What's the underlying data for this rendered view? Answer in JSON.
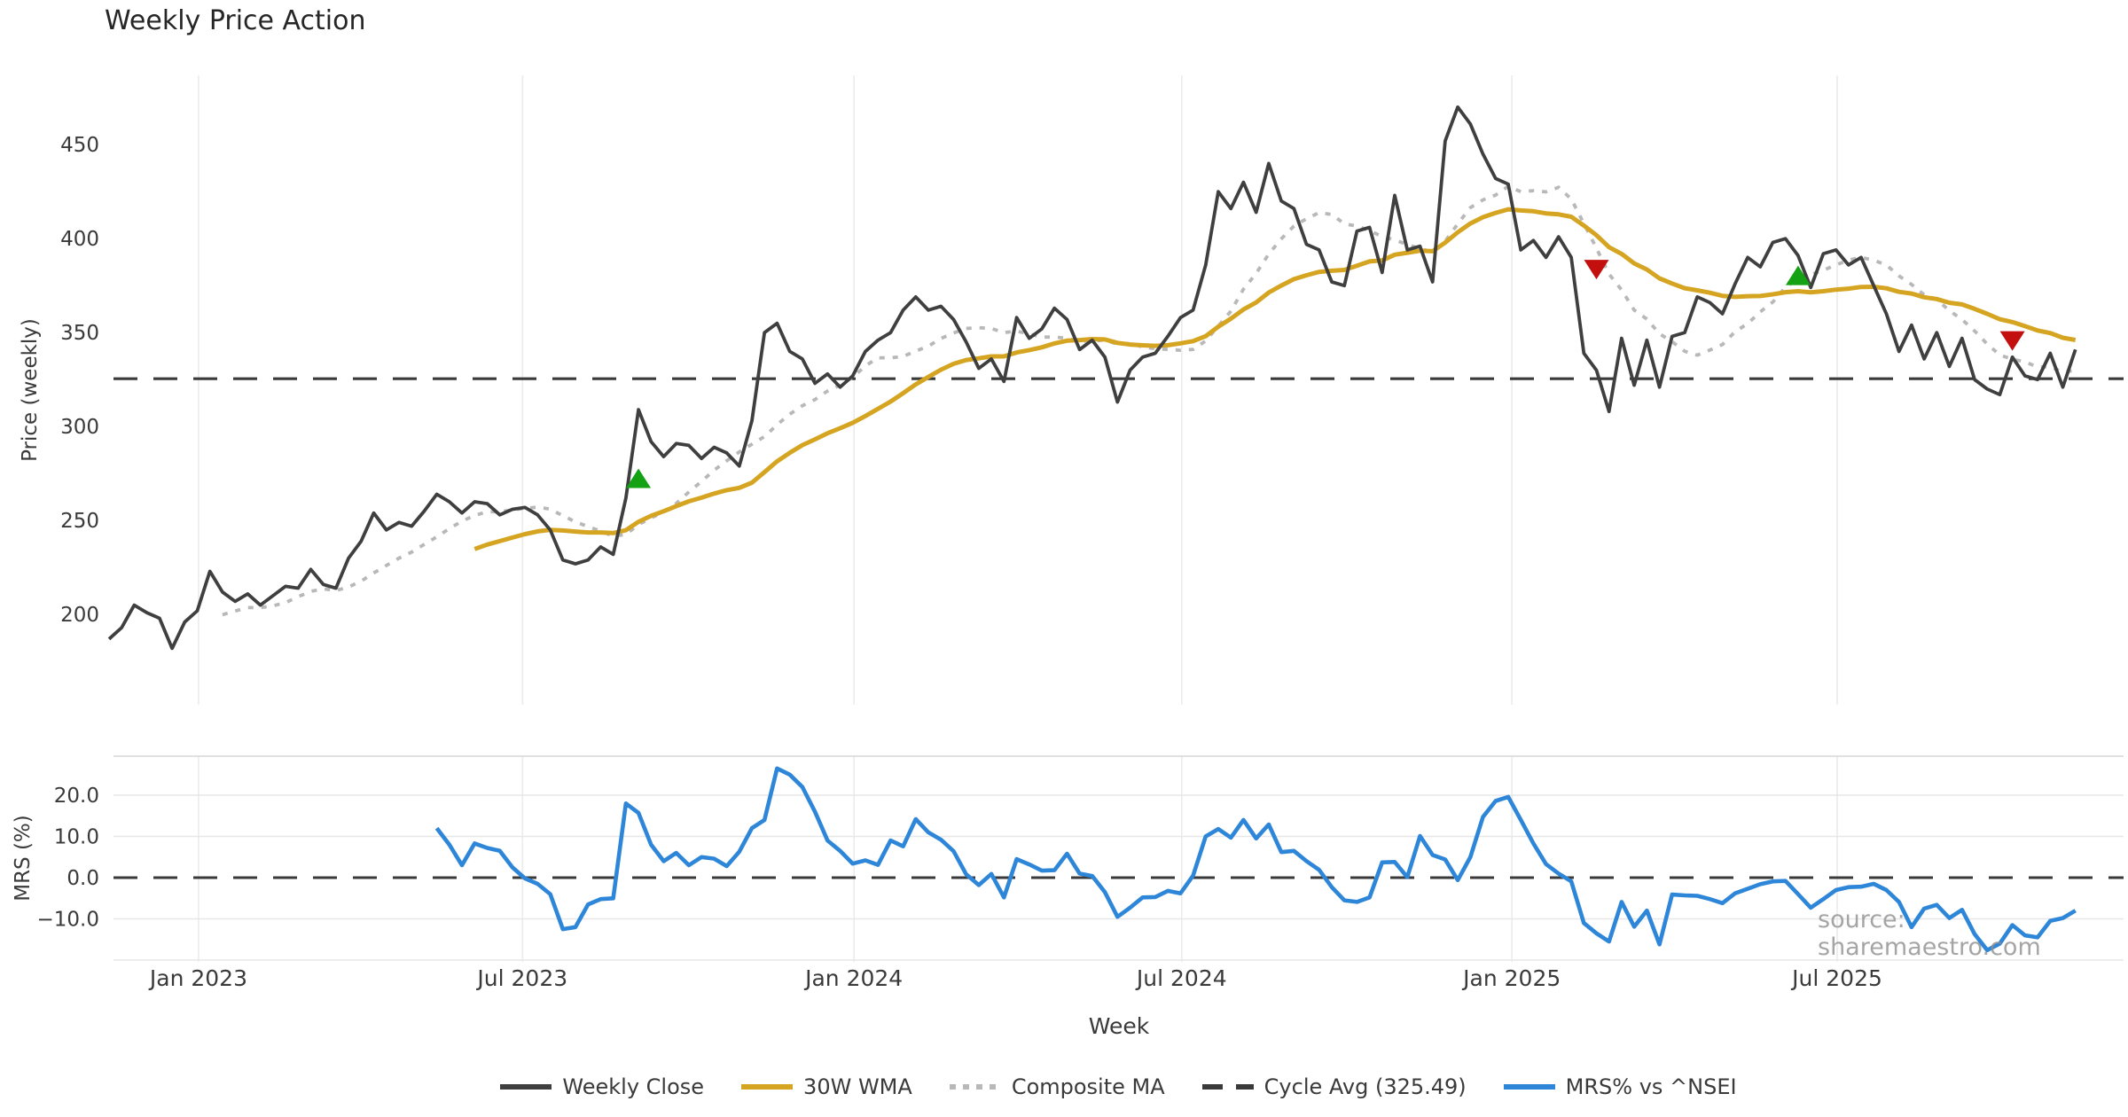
{
  "chart_data": {
    "type": "line",
    "title": "Weekly Price Action",
    "xlabel": "Week",
    "ylabel_top": "Price (weekly)",
    "ylabel_bottom": "MRS (%)",
    "frequency": "weekly",
    "start_date": "2022-11-14",
    "cycle_avg": 325.49,
    "price_ylim": [
      152,
      487
    ],
    "mrs_ylim": [
      -20.4,
      29.5
    ],
    "grid": "vertical-both-panels, horizontal-bottom-panel",
    "legend_position": "bottom-center",
    "price_ticks": [
      200,
      250,
      300,
      350,
      400,
      450
    ],
    "mrs_ticks": [
      {
        "value": 20,
        "label": "20.0"
      },
      {
        "value": 10,
        "label": "10.0"
      },
      {
        "value": 0,
        "label": "0.0"
      },
      {
        "value": -10,
        "label": "−10.0"
      }
    ],
    "mrs_gridlines": [
      20,
      10,
      -10,
      -20
    ],
    "x_ticks": [
      {
        "week": 7.1,
        "label": "Jan 2023"
      },
      {
        "week": 32.8,
        "label": "Jul 2023"
      },
      {
        "week": 59.1,
        "label": "Jan 2024"
      },
      {
        "week": 85.1,
        "label": "Jul 2024"
      },
      {
        "week": 111.3,
        "label": "Jan 2025"
      },
      {
        "week": 137.1,
        "label": "Jul 2025"
      }
    ],
    "series": {
      "weekly_close": {
        "name": "Weekly Close",
        "start_week": 0,
        "values": [
          187,
          193,
          205,
          201,
          198,
          182,
          196,
          202,
          223,
          212,
          207,
          211,
          205,
          210,
          215,
          214,
          224,
          216,
          214,
          230,
          239,
          254,
          245,
          249,
          247,
          255,
          264,
          260,
          254,
          260,
          259,
          253,
          256,
          257,
          253,
          245,
          229,
          227,
          229,
          236,
          232,
          262,
          309,
          292,
          284,
          291,
          290,
          283,
          289,
          286,
          279,
          303,
          350,
          355,
          340,
          336,
          323,
          328,
          321,
          327,
          340,
          346,
          350,
          362,
          369,
          362,
          364,
          357,
          345,
          331,
          336,
          324,
          358,
          347,
          352,
          363,
          357,
          341,
          346,
          337,
          313,
          330,
          337,
          339,
          348,
          358,
          362,
          386,
          425,
          416,
          430,
          414,
          440,
          420,
          416,
          397,
          394,
          377,
          375,
          404,
          406,
          382,
          423,
          394,
          396,
          377,
          452,
          470,
          461,
          445,
          432,
          429,
          394,
          399,
          390,
          401,
          390,
          339,
          330,
          308,
          347,
          322,
          346,
          321,
          348,
          350,
          369,
          366,
          360,
          376,
          390,
          385,
          398,
          400,
          391,
          374,
          392,
          394,
          386,
          390,
          375,
          360,
          340,
          354,
          336,
          350,
          332,
          347,
          325,
          320,
          317,
          337,
          327,
          325,
          339,
          321,
          341
        ]
      },
      "wma_30w": {
        "name": "30W WMA",
        "derived": "wma",
        "window": 30
      },
      "composite_ma": {
        "name": "Composite MA",
        "derived": "sma",
        "window": 10
      },
      "mrs_pct": {
        "name": "MRS% vs ^NSEI",
        "start_week": 26,
        "values": [
          12.0,
          8.0,
          3.0,
          8.3,
          7.2,
          6.5,
          2.5,
          -0.2,
          -1.5,
          -4.0,
          -12.5,
          -12.0,
          -6.5,
          -5.2,
          -5.0,
          18.0,
          15.7,
          8.0,
          4.0,
          6.0,
          3.0,
          5.0,
          4.6,
          2.8,
          6.3,
          12.0,
          14.0,
          26.5,
          25.0,
          22.0,
          16.0,
          9.0,
          6.5,
          3.4,
          4.2,
          3.1,
          9.0,
          7.6,
          14.2,
          11.0,
          9.2,
          6.4,
          0.8,
          -1.8,
          0.9,
          -4.8,
          4.5,
          3.2,
          1.7,
          1.8,
          5.8,
          1.0,
          0.4,
          -3.5,
          -9.5,
          -7.3,
          -4.8,
          -4.7,
          -3.2,
          -3.8,
          0.5,
          10.0,
          11.8,
          9.7,
          14.0,
          9.5,
          12.9,
          6.2,
          6.5,
          4.0,
          1.9,
          -2.3,
          -5.5,
          -5.9,
          -4.8,
          3.7,
          3.8,
          0.1,
          10.1,
          5.5,
          4.4,
          -0.6,
          5.0,
          14.7,
          18.6,
          19.6,
          14.0,
          8.3,
          3.3,
          1.0,
          -0.9,
          -11.0,
          -13.5,
          -15.5,
          -5.9,
          -11.9,
          -8.0,
          -16.2,
          -4.1,
          -4.3,
          -4.4,
          -5.2,
          -6.2,
          -3.8,
          -2.7,
          -1.6,
          -0.9,
          -0.8,
          -4.0,
          -7.3,
          -5.2,
          -3.0,
          -2.3,
          -2.2,
          -1.5,
          -3.0,
          -5.9,
          -12.0,
          -7.5,
          -6.6,
          -9.8,
          -7.8,
          -13.7,
          -17.6,
          -16.0,
          -11.5,
          -14.0,
          -14.5,
          -10.5,
          -9.8,
          -8.0
        ]
      }
    },
    "markers": [
      {
        "type": "buy",
        "shape": "triangle-up",
        "week": 42,
        "value": 272
      },
      {
        "type": "sell",
        "shape": "triangle-down",
        "week": 118,
        "value": 384
      },
      {
        "type": "buy",
        "shape": "triangle-up",
        "week": 134,
        "value": 380
      },
      {
        "type": "sell",
        "shape": "triangle-down",
        "week": 151,
        "value": 346
      }
    ],
    "legend": [
      "Weekly Close",
      "30W WMA",
      "Composite MA",
      "Cycle Avg (325.49)",
      "MRS% vs ^NSEI"
    ]
  },
  "watermark": "source: sharemaestro.com",
  "colors": {
    "weekly_close": "#3f3f3f",
    "wma_30w": "#d5a421",
    "composite_ma": "#b8b8b8",
    "cycle_avg": "#3a3a3a",
    "mrs": "#2e86d9",
    "buy_marker": "#14a214",
    "sell_marker": "#c40f0f",
    "grid": "#ebebeb",
    "panel_border": "#dcdcdc",
    "tick_text": "#3a3a3a"
  }
}
